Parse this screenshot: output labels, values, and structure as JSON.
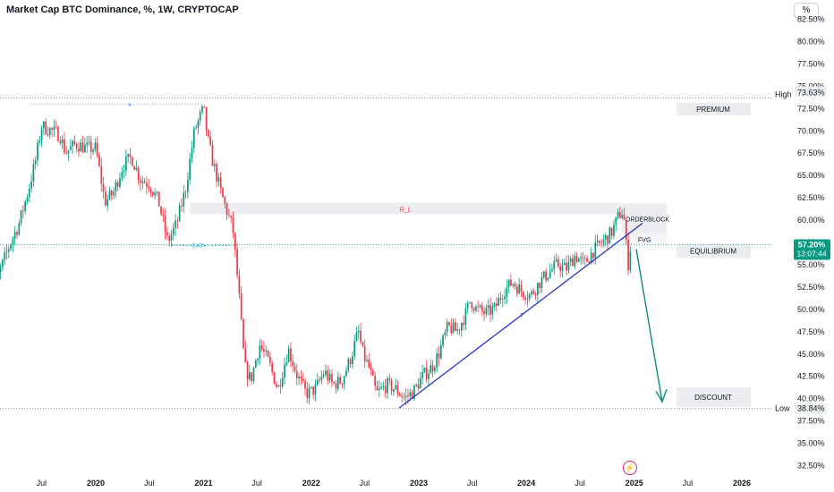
{
  "title": "Market Cap BTC Dominance, %, 1W, CRYPTOCAP",
  "scale_button": "%",
  "colors": {
    "up": "#089981",
    "down": "#f23645",
    "trendline": "#2436c8",
    "arrow": "#11897a",
    "zone_box": "#ebedf0",
    "price_tag": "#089981",
    "alert_icon": "#e91e63"
  },
  "icons": {
    "alert": "lightning-bolt-icon"
  },
  "chart_data": {
    "type": "candlestick",
    "title": "Market Cap BTC Dominance, %, 1W, CRYPTOCAP",
    "x_ticks": [
      "Jul",
      "2020",
      "Jul",
      "2021",
      "Jul",
      "2022",
      "Jul",
      "2023",
      "Jul",
      "2024",
      "Jul",
      "2025",
      "Jul",
      "2026"
    ],
    "y_ticks": [
      "32.50%",
      "35.00%",
      "37.50%",
      "40.00%",
      "42.50%",
      "45.00%",
      "47.50%",
      "50.00%",
      "52.50%",
      "55.00%",
      "57.50%",
      "60.00%",
      "62.50%",
      "65.00%",
      "67.50%",
      "70.00%",
      "72.50%",
      "75.00%",
      "77.50%",
      "80.00%",
      "82.50%"
    ],
    "ylim": [
      32.5,
      82.5
    ],
    "grid": false,
    "close_path": [
      [
        "2019-01-01",
        54.0
      ],
      [
        "2019-01-25",
        52.8
      ],
      [
        "2019-03-15",
        57.2
      ],
      [
        "2019-04-15",
        59.5
      ],
      [
        "2019-05-15",
        63.0
      ],
      [
        "2019-06-10",
        66.5
      ],
      [
        "2019-07-01",
        70.5
      ],
      [
        "2019-08-01",
        70.0
      ],
      [
        "2019-09-01",
        69.5
      ],
      [
        "2019-09-20",
        67.5
      ],
      [
        "2019-10-25",
        68.5
      ],
      [
        "2019-12-01",
        68.0
      ],
      [
        "2020-01-01",
        68.0
      ],
      [
        "2020-02-01",
        62.0
      ],
      [
        "2020-03-01",
        63.0
      ],
      [
        "2020-04-01",
        66.0
      ],
      [
        "2020-05-01",
        67.0
      ],
      [
        "2020-06-01",
        64.5
      ],
      [
        "2020-07-01",
        64.0
      ],
      [
        "2020-08-01",
        62.0
      ],
      [
        "2020-09-01",
        57.5
      ],
      [
        "2020-10-01",
        59.5
      ],
      [
        "2020-11-01",
        63.5
      ],
      [
        "2020-12-01",
        70.0
      ],
      [
        "2021-01-01",
        72.5
      ],
      [
        "2021-01-15",
        69.0
      ],
      [
        "2021-02-01",
        66.5
      ],
      [
        "2021-03-01",
        63.0
      ],
      [
        "2021-03-20",
        61.0
      ],
      [
        "2021-04-10",
        59.0
      ],
      [
        "2021-04-30",
        52.0
      ],
      [
        "2021-05-20",
        43.5
      ],
      [
        "2021-06-10",
        42.0
      ],
      [
        "2021-07-10",
        46.0
      ],
      [
        "2021-08-10",
        44.0
      ],
      [
        "2021-09-10",
        41.0
      ],
      [
        "2021-10-15",
        45.5
      ],
      [
        "2021-11-15",
        42.5
      ],
      [
        "2021-12-15",
        40.5
      ],
      [
        "2022-01-15",
        41.0
      ],
      [
        "2022-02-15",
        43.0
      ],
      [
        "2022-03-15",
        41.5
      ],
      [
        "2022-04-15",
        42.0
      ],
      [
        "2022-05-15",
        44.5
      ],
      [
        "2022-06-10",
        47.5
      ],
      [
        "2022-06-25",
        45.0
      ],
      [
        "2022-07-15",
        43.5
      ],
      [
        "2022-08-10",
        40.5
      ],
      [
        "2022-09-15",
        41.5
      ],
      [
        "2022-10-15",
        41.0
      ],
      [
        "2022-11-15",
        40.0
      ],
      [
        "2022-12-15",
        40.8
      ],
      [
        "2023-01-15",
        42.5
      ],
      [
        "2023-02-15",
        43.5
      ],
      [
        "2023-03-10",
        45.0
      ],
      [
        "2023-03-25",
        46.5
      ],
      [
        "2023-04-10",
        48.0
      ],
      [
        "2023-05-10",
        47.5
      ],
      [
        "2023-06-10",
        49.5
      ],
      [
        "2023-06-25",
        51.0
      ],
      [
        "2023-07-15",
        50.0
      ],
      [
        "2023-08-15",
        49.5
      ],
      [
        "2023-09-15",
        50.0
      ],
      [
        "2023-10-15",
        52.0
      ],
      [
        "2023-11-15",
        53.0
      ],
      [
        "2023-12-15",
        52.0
      ],
      [
        "2024-01-15",
        51.5
      ],
      [
        "2024-02-15",
        53.0
      ],
      [
        "2024-03-15",
        54.0
      ],
      [
        "2024-04-15",
        55.0
      ],
      [
        "2024-05-15",
        54.5
      ],
      [
        "2024-06-15",
        56.0
      ],
      [
        "2024-07-15",
        55.0
      ],
      [
        "2024-08-15",
        56.5
      ],
      [
        "2024-09-15",
        57.5
      ],
      [
        "2024-10-15",
        58.5
      ],
      [
        "2024-11-10",
        60.5
      ],
      [
        "2024-11-25",
        61.0
      ],
      [
        "2024-12-05",
        57.0
      ],
      [
        "2024-12-12",
        55.0
      ],
      [
        "2024-12-20",
        57.2
      ]
    ],
    "last_value": "57.20%",
    "countdown": "13:07:44",
    "high": {
      "label": "High",
      "value": "73.63%"
    },
    "low": {
      "label": "Low",
      "value": "38.84%"
    },
    "zones": {
      "premium": "PREMIUM",
      "equilibrium": "EQUILIBRIUM",
      "discount": "DISCOUNT"
    },
    "annotations": {
      "orderblock": "ORDERBLOCK",
      "fvg": "FVG",
      "choch": "CoCh",
      "bsl": "R_L",
      "x_mark": "x",
      "trend_label": "T"
    }
  }
}
